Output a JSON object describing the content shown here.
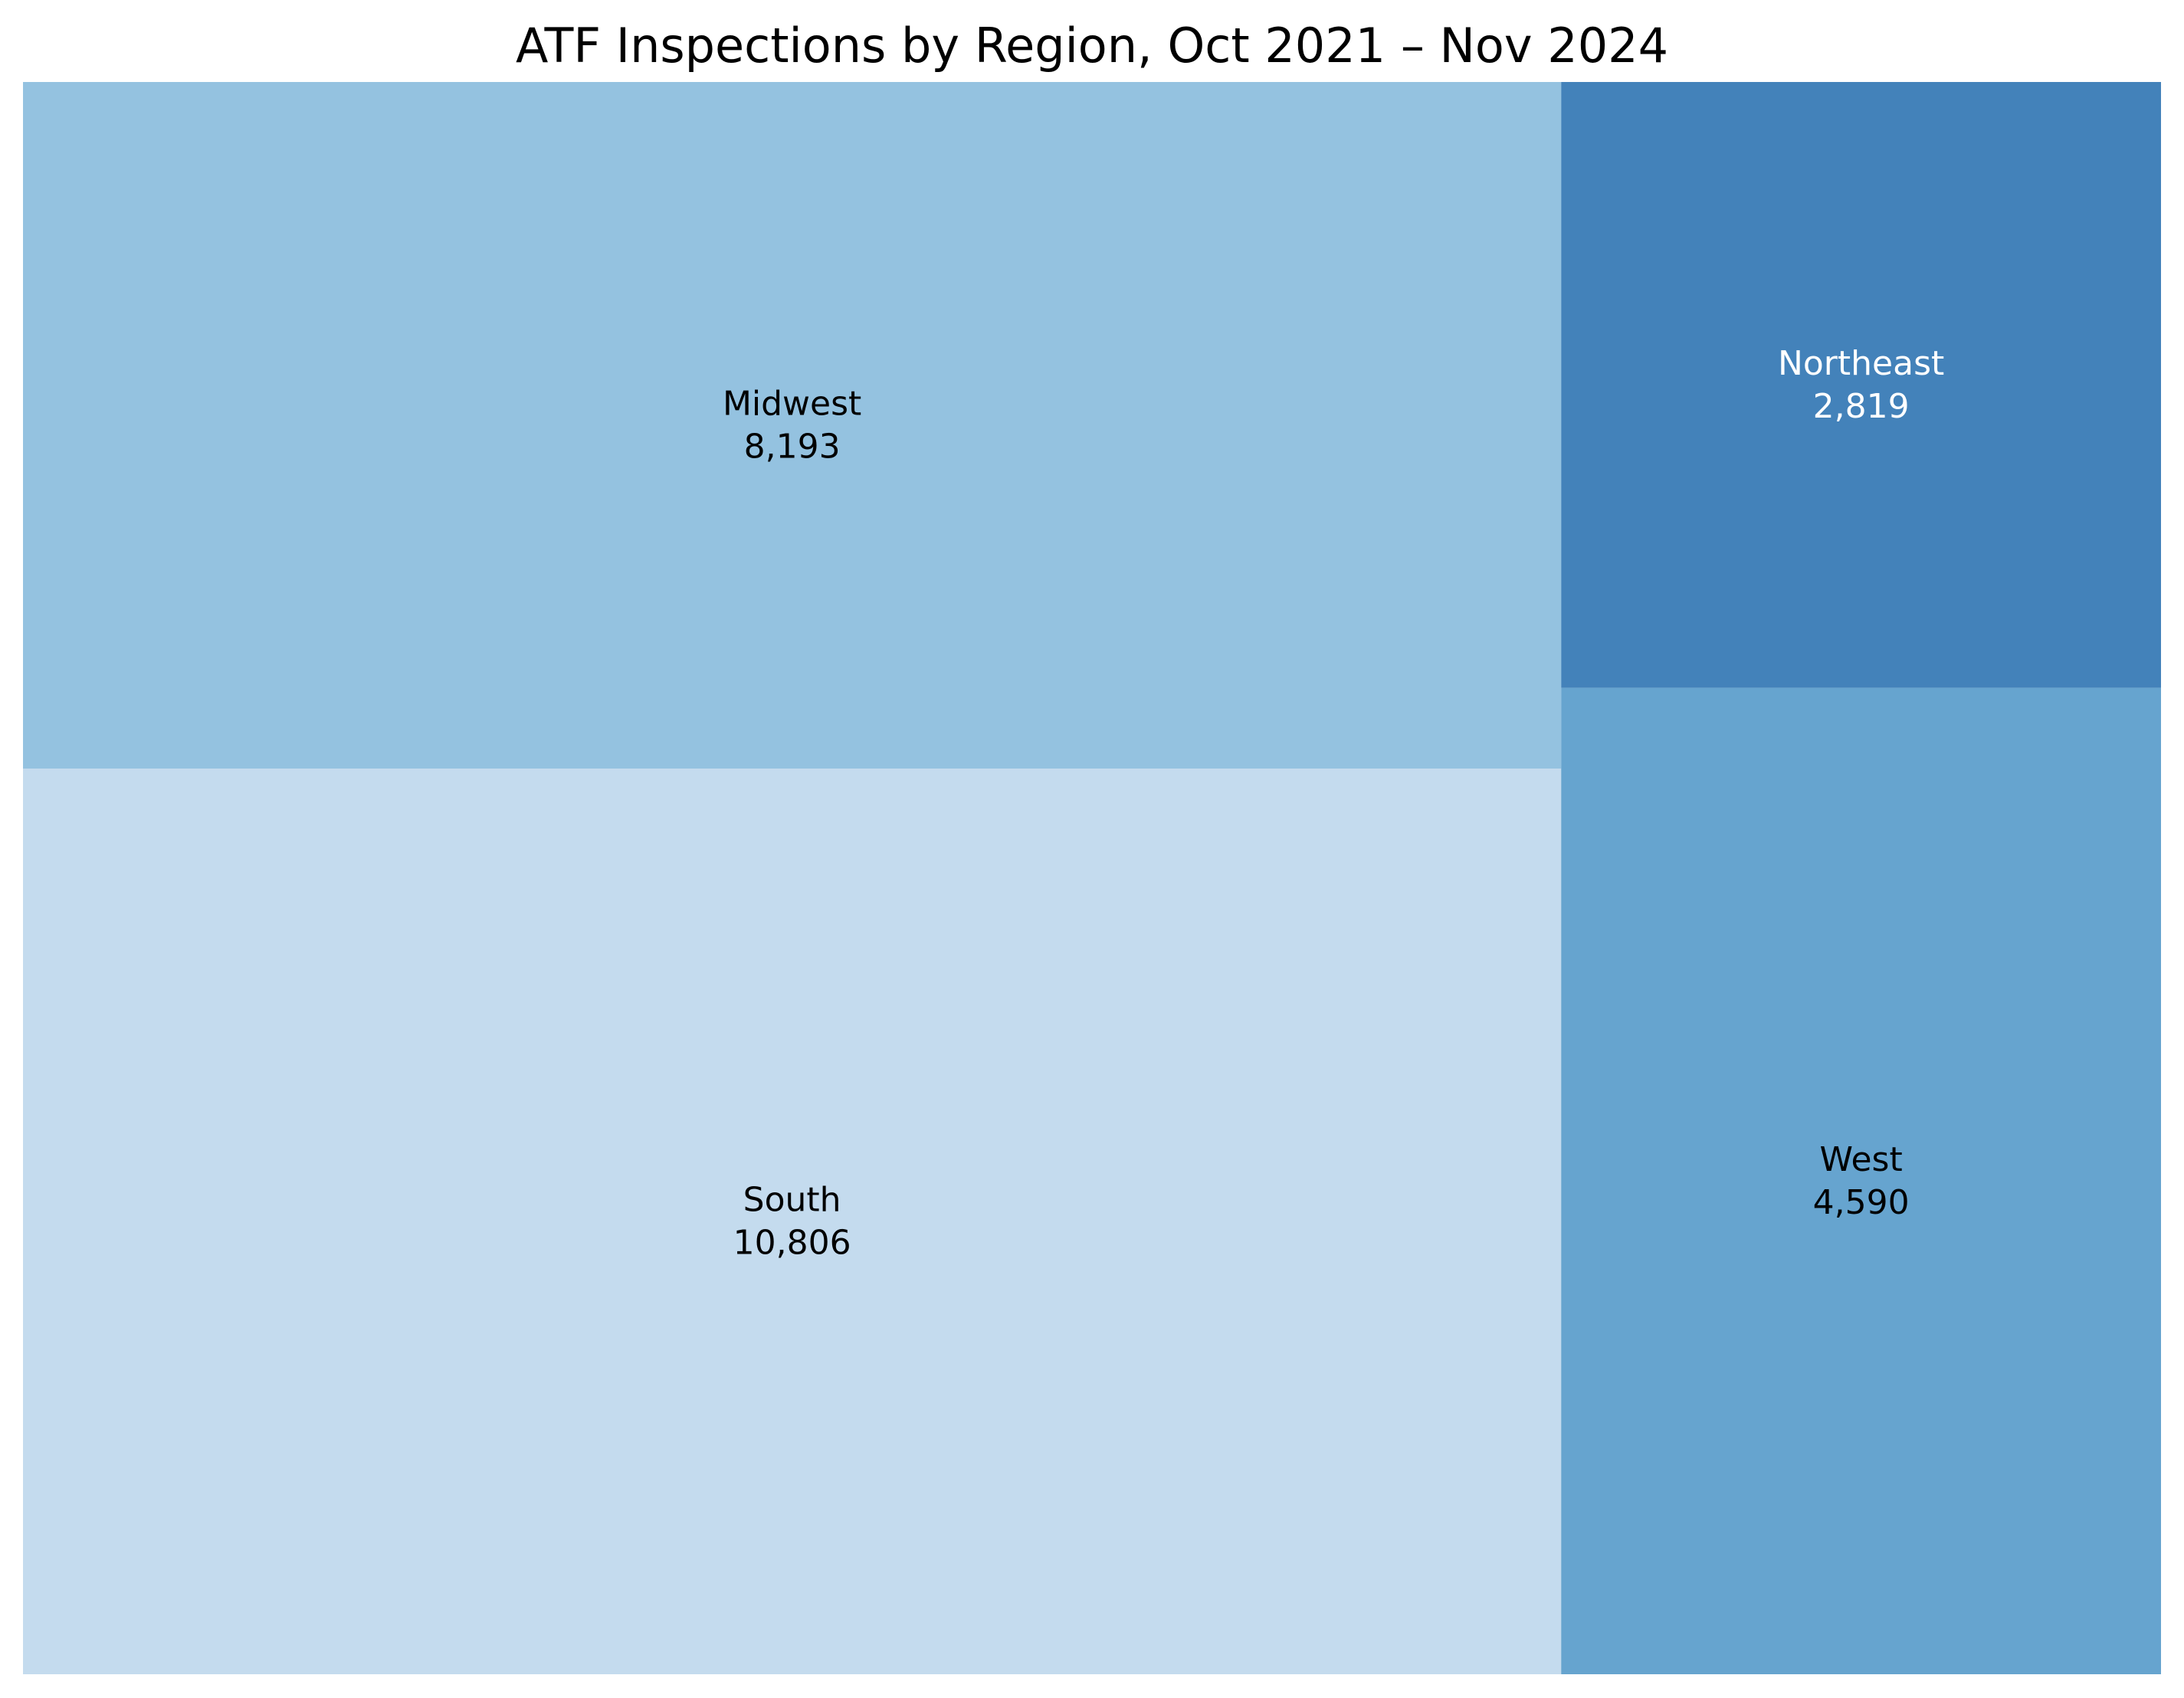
{
  "chart_data": {
    "type": "treemap",
    "title": "ATF Inspections by Region, Oct 2021 – Nov 2024",
    "items": [
      {
        "name": "South",
        "value": 10806,
        "label": "10,806",
        "color": "#c4dbee",
        "text_color": "#000000"
      },
      {
        "name": "Midwest",
        "value": 8193,
        "label": "8,193",
        "color": "#94c2e0",
        "text_color": "#000000"
      },
      {
        "name": "West",
        "value": 4590,
        "label": "4,590",
        "color": "#66a4cf",
        "text_color": "#000000"
      },
      {
        "name": "Northeast",
        "value": 2819,
        "label": "2,819",
        "color": "#4382ba",
        "text_color": "#ffffff"
      }
    ]
  }
}
